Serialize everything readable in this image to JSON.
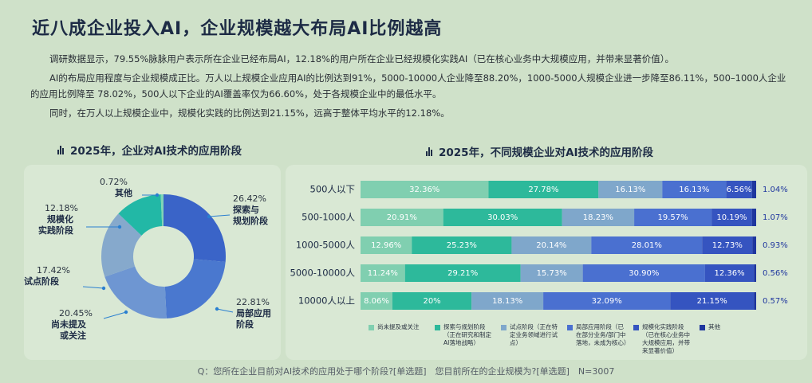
{
  "title": "近八成企业投入AI，企业规模越大布局AI比例越高",
  "paragraphs": [
    "调研数据显示，79.55%脉脉用户表示所在企业已经布局AI，12.18%的用户所在企业已经规模化实践AI（已在核心业务中大规模应用，并带来显著价值）。",
    "AI的布局应用程度与企业规模成正比。万人以上规模企业应用AI的比例达到91%，5000-10000人企业降至88.20%，1000-5000人规模企业进一步降至86.11%，500–1000人企业的应用比例降至 78.02%，500人以下企业的AI覆盖率仅为66.60%，处于各规模企业中的最低水平。",
    "同时，在万人以上规模企业中，规模化实践的比例达到21.15%，远高于整体平均水平的12.18%。"
  ],
  "footnote": "Q：您所在企业目前对AI技术的应用处于哪个阶段?[单选题]　您目前所在的企业规模为?[单选题]　N=3007",
  "chart_data": [
    {
      "type": "donut",
      "title": "2025年，企业对AI技术的应用阶段",
      "categories": [
        "探索与\n规划阶段",
        "局部应用\n阶段",
        "尚未提及\n或关注",
        "试点阶段",
        "规模化\n实践阶段",
        "其他"
      ],
      "values": [
        26.42,
        22.81,
        20.45,
        17.42,
        12.18,
        0.72
      ],
      "value_labels": [
        "26.42%",
        "22.81%",
        "20.45%",
        "17.42%",
        "12.18%",
        "0.72%"
      ],
      "colors": [
        "#3a64c8",
        "#4a78cf",
        "#6e96d2",
        "#86a9cc",
        "#22b8a6",
        "#80d4b6"
      ]
    },
    {
      "type": "stacked-barh",
      "title": "2025年，不同规模企业对AI技术的应用阶段",
      "categories": [
        "500人以下",
        "500-1000人",
        "1000-5000人",
        "5000-10000人",
        "10000人以上"
      ],
      "xlim": [
        0,
        100
      ],
      "series": [
        {
          "name": "尚未提及或关注",
          "color": "#80cfb0",
          "values": [
            32.36,
            20.91,
            12.96,
            11.24,
            8.06
          ],
          "value_labels": [
            "32.36%",
            "20.91%",
            "12.96%",
            "11.24%",
            "8.06%"
          ]
        },
        {
          "name": "探索与规划阶段（正在研究和制定AI落地战略）",
          "color": "#2db99b",
          "values": [
            27.78,
            30.03,
            25.23,
            29.21,
            20
          ],
          "value_labels": [
            "27.78%",
            "30.03%",
            "25.23%",
            "29.21%",
            "20%"
          ]
        },
        {
          "name": "试点阶段（正在特定业务领域进行试点）",
          "color": "#7fa7cb",
          "values": [
            16.13,
            18.23,
            20.14,
            15.73,
            18.13
          ],
          "value_labels": [
            "16.13%",
            "18.23%",
            "20.14%",
            "15.73%",
            "18.13%"
          ]
        },
        {
          "name": "局部应用阶段（已在部分业务/部门中落地，未成为核心）",
          "color": "#4a70d0",
          "values": [
            16.13,
            19.57,
            28.01,
            30.9,
            32.09
          ],
          "value_labels": [
            "16.13%",
            "19.57%",
            "28.01%",
            "30.90%",
            "32.09%"
          ]
        },
        {
          "name": "规模化实践阶段（已在核心业务中大规模应用，并带来显著价值）",
          "color": "#3554c0",
          "values": [
            6.56,
            10.19,
            12.73,
            12.36,
            21.15
          ],
          "value_labels": [
            "6.56%",
            "10.19%",
            "12.73%",
            "12.36%",
            "21.15%"
          ]
        },
        {
          "name": "其他",
          "color": "#1f369e",
          "values": [
            1.04,
            1.07,
            0.93,
            0.56,
            0.57
          ],
          "value_labels": [
            "1.04%",
            "1.07%",
            "0.93%",
            "0.56%",
            "0.57%"
          ]
        }
      ]
    }
  ]
}
